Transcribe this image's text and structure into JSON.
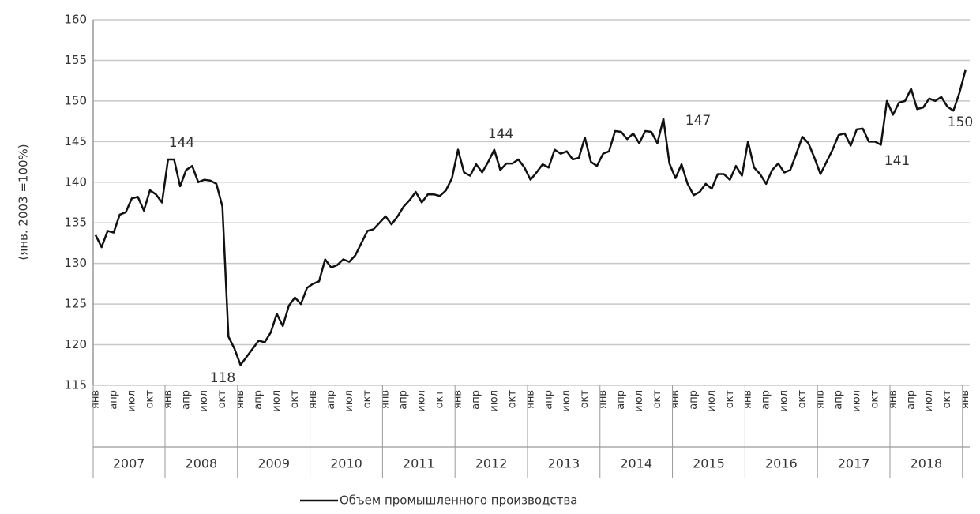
{
  "chart_data": {
    "type": "line",
    "y_label": "(янв. 2003 =100%)",
    "categories": [
      "янв",
      null,
      null,
      "апр",
      null,
      null,
      "июл",
      null,
      null,
      "окт",
      null,
      null,
      "янв",
      null,
      null,
      "апр",
      null,
      null,
      "июл",
      null,
      null,
      "окт",
      null,
      null,
      "янв",
      null,
      null,
      "апр",
      null,
      null,
      "июл",
      null,
      null,
      "окт",
      null,
      null,
      "янв",
      null,
      null,
      "апр",
      null,
      null,
      "июл",
      null,
      null,
      "окт",
      null,
      null,
      "янв",
      null,
      null,
      "апр",
      null,
      null,
      "июл",
      null,
      null,
      "окт",
      null,
      null,
      "янв",
      null,
      null,
      "апр",
      null,
      null,
      "июл",
      null,
      null,
      "окт",
      null,
      null,
      "янв",
      null,
      null,
      "апр",
      null,
      null,
      "июл",
      null,
      null,
      "окт",
      null,
      null,
      "янв",
      null,
      null,
      "апр",
      null,
      null,
      "июл",
      null,
      null,
      "окт",
      null,
      null,
      "янв",
      null,
      null,
      "апр",
      null,
      null,
      "июл",
      null,
      null,
      "окт",
      null,
      null,
      "янв",
      null,
      null,
      "апр",
      null,
      null,
      "июл",
      null,
      null,
      "окт",
      null,
      null,
      "янв",
      null,
      null,
      "апр",
      null,
      null,
      "июл",
      null,
      null,
      "окт",
      null,
      null,
      "янв",
      null,
      null,
      "апр",
      null,
      null,
      "июл",
      null,
      null,
      "окт",
      null,
      null,
      "янв"
    ],
    "years": [
      "2007",
      "2008",
      "2009",
      "2010",
      "2011",
      "2012",
      "2013",
      "2014",
      "2015",
      "2016",
      "2017",
      "2018"
    ],
    "series": [
      {
        "name": "Объем промышленного производства",
        "color": "#111111",
        "values": [
          133.5,
          132,
          134,
          133.8,
          136,
          136.3,
          138,
          138.2,
          136.5,
          139,
          138.5,
          137.5,
          142.8,
          142.8,
          139.5,
          141.5,
          142,
          140,
          140.3,
          140.2,
          139.8,
          137,
          121,
          119.5,
          117.5,
          118.5,
          119.5,
          120.5,
          120.3,
          121.5,
          123.8,
          122.3,
          124.8,
          125.8,
          125,
          127,
          127.5,
          127.8,
          130.5,
          129.5,
          129.8,
          130.5,
          130.2,
          131,
          132.5,
          134,
          134.2,
          135,
          135.8,
          134.8,
          135.8,
          137,
          137.8,
          138.8,
          137.5,
          138.5,
          138.5,
          138.3,
          139,
          140.5,
          144,
          141.2,
          140.8,
          142.2,
          141.2,
          142.5,
          144,
          141.5,
          142.3,
          142.3,
          142.8,
          141.8,
          140.3,
          141.2,
          142.2,
          141.8,
          144,
          143.5,
          143.8,
          142.8,
          143,
          145.5,
          142.5,
          142,
          143.5,
          143.8,
          146.3,
          146.2,
          145.3,
          146,
          144.8,
          146.3,
          146.2,
          144.8,
          147.8,
          142.3,
          140.5,
          142.2,
          139.8,
          138.4,
          138.8,
          139.8,
          139.2,
          141,
          141,
          140.3,
          142,
          140.8,
          145,
          141.8,
          141,
          139.8,
          141.5,
          142.3,
          141.2,
          141.5,
          143.5,
          145.6,
          144.8,
          143,
          141,
          142.5,
          144,
          145.8,
          146,
          144.5,
          146.5,
          146.6,
          145,
          145,
          144.6,
          150,
          148.3,
          149.8,
          150,
          151.5,
          149,
          149.2,
          150.3,
          150,
          150.5,
          149.3,
          148.8,
          151,
          153.8
        ]
      }
    ],
    "annotations": [
      "144",
      "118",
      "144",
      "147",
      "141",
      "150"
    ],
    "ylim": [
      115,
      160
    ],
    "yticks": [
      115,
      120,
      125,
      130,
      135,
      140,
      145,
      150,
      155,
      160
    ],
    "grid": true
  }
}
